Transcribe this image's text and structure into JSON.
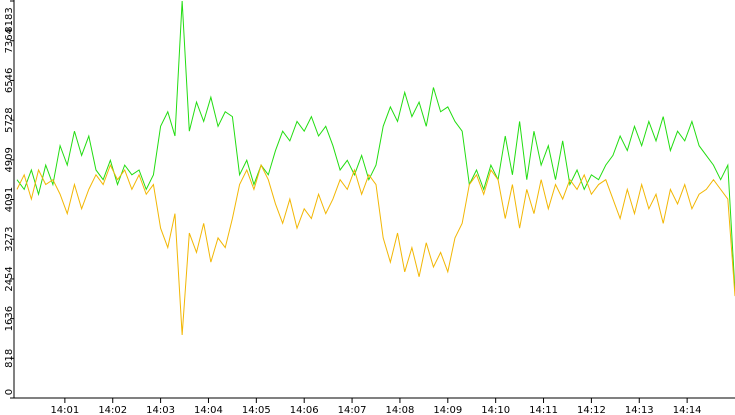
{
  "chart_data": {
    "type": "line",
    "x": [
      0,
      0.15,
      0.3,
      0.45,
      0.6,
      0.75,
      0.9,
      1.05,
      1.2,
      1.35,
      1.5,
      1.65,
      1.8,
      1.95,
      2.1,
      2.25,
      2.4,
      2.55,
      2.7,
      2.85,
      3,
      3.15,
      3.3,
      3.45,
      3.6,
      3.75,
      3.9,
      4.05,
      4.2,
      4.35,
      4.5,
      4.65,
      4.8,
      4.95,
      5.1,
      5.25,
      5.4,
      5.55,
      5.7,
      5.85,
      6,
      6.15,
      6.3,
      6.45,
      6.6,
      6.75,
      6.9,
      7.05,
      7.2,
      7.35,
      7.5,
      7.65,
      7.8,
      7.95,
      8.1,
      8.25,
      8.4,
      8.55,
      8.7,
      8.85,
      9,
      9.15,
      9.3,
      9.45,
      9.6,
      9.75,
      9.9,
      10.05,
      10.2,
      10.35,
      10.5,
      10.65,
      10.8,
      10.95,
      11.1,
      11.25,
      11.4,
      11.55,
      11.7,
      11.85,
      12,
      12.15,
      12.3,
      12.45,
      12.6,
      12.75,
      12.9,
      13.05,
      13.2,
      13.35,
      13.5,
      13.65,
      13.8,
      13.95,
      14.1,
      14.25,
      14.4,
      14.55,
      14.7,
      14.85,
      15
    ],
    "series": [
      {
        "color": "#22dd11",
        "values": [
          4500,
          4300,
          4700,
          4200,
          4800,
          4400,
          5200,
          4800,
          5500,
          5000,
          5400,
          4700,
          4500,
          4900,
          4400,
          4800,
          4600,
          4700,
          4300,
          4600,
          5600,
          5900,
          5400,
          8183,
          5500,
          6100,
          5700,
          6200,
          5600,
          5900,
          5800,
          4600,
          4900,
          4400,
          4800,
          4600,
          5100,
          5500,
          5300,
          5700,
          5500,
          5800,
          5400,
          5600,
          5200,
          4700,
          4900,
          4600,
          5000,
          4500,
          4800,
          5600,
          6000,
          5700,
          6300,
          5800,
          6100,
          5600,
          6400,
          5900,
          6000,
          5700,
          5500,
          4400,
          4700,
          4300,
          4800,
          4500,
          5400,
          4600,
          5700,
          4500,
          5500,
          4800,
          5200,
          4500,
          5300,
          4400,
          4700,
          4300,
          4600,
          4500,
          4800,
          5000,
          5400,
          5100,
          5600,
          5200,
          5700,
          5300,
          5800,
          5100,
          5500,
          5300,
          5700,
          5200,
          5000,
          4800,
          4500,
          4800,
          2200
        ]
      },
      {
        "color": "#f2b705",
        "values": [
          4300,
          4600,
          4100,
          4700,
          4400,
          4500,
          4200,
          3800,
          4400,
          3900,
          4300,
          4600,
          4400,
          4800,
          4500,
          4700,
          4300,
          4600,
          4200,
          4400,
          3500,
          3100,
          3800,
          1300,
          3400,
          3000,
          3600,
          2800,
          3300,
          3100,
          3700,
          4400,
          4700,
          4300,
          4800,
          4500,
          4000,
          3600,
          4100,
          3500,
          3900,
          3700,
          4200,
          3800,
          4100,
          4500,
          4300,
          4700,
          4200,
          4600,
          4400,
          3300,
          2800,
          3400,
          2600,
          3100,
          2500,
          3200,
          2700,
          3000,
          2600,
          3300,
          3600,
          4400,
          4600,
          4200,
          4700,
          4500,
          3700,
          4400,
          3500,
          4300,
          3800,
          4500,
          3900,
          4400,
          4100,
          4500,
          4300,
          4600,
          4200,
          4400,
          4500,
          4100,
          3700,
          4300,
          3800,
          4400,
          3900,
          4200,
          3600,
          4300,
          4000,
          4400,
          3900,
          4200,
          4300,
          4500,
          4300,
          4100,
          2100
        ]
      }
    ],
    "xlim": [
      0,
      15
    ],
    "xticks": [
      {
        "value": 1,
        "label": "14:01"
      },
      {
        "value": 2,
        "label": "14:02"
      },
      {
        "value": 3,
        "label": "14:03"
      },
      {
        "value": 4,
        "label": "14:04"
      },
      {
        "value": 5,
        "label": "14:05"
      },
      {
        "value": 6,
        "label": "14:06"
      },
      {
        "value": 7,
        "label": "14:07"
      },
      {
        "value": 8,
        "label": "14:08"
      },
      {
        "value": 9,
        "label": "14:09"
      },
      {
        "value": 10,
        "label": "14:10"
      },
      {
        "value": 11,
        "label": "14:11"
      },
      {
        "value": 12,
        "label": "14:12"
      },
      {
        "value": 13,
        "label": "14:13"
      },
      {
        "value": 14,
        "label": "14:14"
      }
    ],
    "ylim": [
      0,
      8183
    ],
    "yticks": [
      0,
      818,
      1636,
      2454,
      3273,
      4091,
      4909,
      5728,
      6546,
      7364,
      8183
    ]
  }
}
